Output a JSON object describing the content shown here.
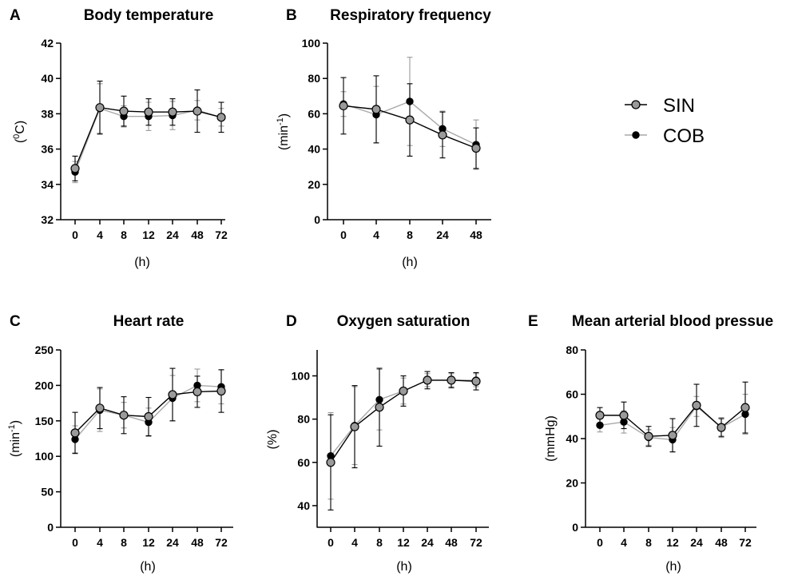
{
  "colors": {
    "SIN_marker": "#9a9a9a",
    "SIN_line": "#000000",
    "COB_marker": "#000000",
    "COB_line": "#a8a8a8",
    "axis": "#000000"
  },
  "legend": {
    "entries": [
      {
        "series": "SIN",
        "label": "SIN"
      },
      {
        "series": "COB",
        "label": "COB"
      }
    ]
  },
  "chart_data": [
    {
      "type": "line",
      "letter": "A",
      "title": "Body temperature",
      "xlabel": "(h)",
      "ylabel_main": "(",
      "ylabel_sup": "0",
      "ylabel_tail": "C)",
      "categories": [
        "0",
        "4",
        "8",
        "12",
        "24",
        "48",
        "72"
      ],
      "ylim": [
        32,
        42
      ],
      "yticks": [
        32,
        34,
        36,
        38,
        40,
        42
      ],
      "series": [
        {
          "name": "SIN",
          "values": [
            34.9,
            38.35,
            38.15,
            38.1,
            38.1,
            38.15,
            37.8
          ],
          "err": [
            0.7,
            1.5,
            0.85,
            0.75,
            0.75,
            1.2,
            0.85
          ]
        },
        {
          "name": "COB",
          "values": [
            34.7,
            38.3,
            37.85,
            37.85,
            37.9,
            38.2,
            37.8
          ],
          "err": [
            0.6,
            1.4,
            0.6,
            0.8,
            0.8,
            0.55,
            0.5
          ]
        }
      ]
    },
    {
      "type": "line",
      "letter": "B",
      "title": "Respiratory frequency",
      "xlabel": "(h)",
      "ylabel_main": "(min",
      "ylabel_sup": "-1",
      "ylabel_tail": ")",
      "categories": [
        "0",
        "4",
        "8",
        "24",
        "48"
      ],
      "ylim": [
        0,
        100
      ],
      "yticks": [
        0,
        20,
        40,
        60,
        80,
        100
      ],
      "series": [
        {
          "name": "SIN",
          "values": [
            64.5,
            62.5,
            56.5,
            48,
            40.5
          ],
          "err": [
            16,
            19,
            20.5,
            13,
            11.5
          ]
        },
        {
          "name": "COB",
          "values": [
            65.5,
            59.5,
            67,
            51.5,
            42.5
          ],
          "err": [
            7,
            16,
            25,
            10,
            14
          ]
        }
      ]
    },
    {
      "type": "line",
      "letter": "C",
      "title": "Heart rate",
      "xlabel": "(h)",
      "ylabel_main": "(min",
      "ylabel_sup": "-1",
      "ylabel_tail": ")",
      "categories": [
        "0",
        "4",
        "8",
        "12",
        "24",
        "48",
        "72"
      ],
      "ylim": [
        0,
        250
      ],
      "yticks": [
        0,
        50,
        100,
        150,
        200,
        250
      ],
      "series": [
        {
          "name": "SIN",
          "values": [
            133,
            168,
            158,
            156,
            187,
            191,
            192
          ],
          "err": [
            29,
            29,
            26,
            27,
            37,
            22,
            30
          ]
        },
        {
          "name": "COB",
          "values": [
            124,
            165,
            158,
            148,
            182,
            200,
            198
          ],
          "err": [
            19,
            30,
            18,
            20,
            32,
            23,
            24
          ]
        }
      ]
    },
    {
      "type": "line",
      "letter": "D",
      "title": "Oxygen saturation",
      "xlabel": "(h)",
      "ylabel_main": "(%)",
      "ylabel_sup": "",
      "ylabel_tail": "",
      "categories": [
        "0",
        "4",
        "8",
        "12",
        "24",
        "48",
        "72"
      ],
      "ylim": [
        30,
        112
      ],
      "yticks": [
        40,
        60,
        80,
        100
      ],
      "series": [
        {
          "name": "SIN",
          "values": [
            60,
            76.5,
            85.5,
            93,
            98,
            98,
            97.5
          ],
          "err": [
            22,
            19,
            18,
            7,
            4,
            3.5,
            4
          ]
        },
        {
          "name": "COB",
          "values": [
            63,
            77,
            89,
            93,
            98,
            98,
            98
          ],
          "err": [
            20,
            18,
            14,
            6,
            3,
            3,
            3
          ]
        }
      ]
    },
    {
      "type": "line",
      "letter": "E",
      "title": "Mean arterial blood pressue",
      "xlabel": "(h)",
      "ylabel_main": "(mmHg)",
      "ylabel_sup": "",
      "ylabel_tail": "",
      "categories": [
        "0",
        "4",
        "8",
        "12",
        "24",
        "48",
        "72"
      ],
      "ylim": [
        0,
        80
      ],
      "yticks": [
        0,
        20,
        40,
        60,
        80
      ],
      "series": [
        {
          "name": "SIN",
          "values": [
            50.5,
            50.5,
            41,
            41.5,
            55,
            45,
            54
          ],
          "err": [
            3.5,
            6,
            4.5,
            7.5,
            9.5,
            4,
            11.5
          ]
        },
        {
          "name": "COB",
          "values": [
            46,
            47.5,
            40.5,
            39.5,
            54.5,
            45,
            51
          ],
          "err": [
            3,
            5,
            3.5,
            5.5,
            4.5,
            4.5,
            9
          ]
        }
      ]
    }
  ]
}
